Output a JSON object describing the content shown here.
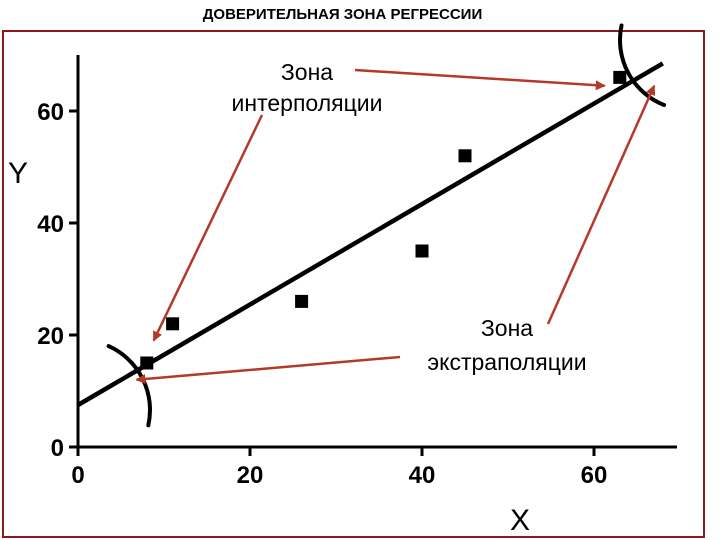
{
  "chart_data": {
    "type": "scatter",
    "title": "ДОВЕРИТЕЛЬНАЯ ЗОНА РЕГРЕССИИ",
    "xlabel": "X",
    "ylabel": "Y",
    "xlim": [
      0,
      70
    ],
    "ylim": [
      0,
      70
    ],
    "x_ticks": [
      0,
      20,
      40,
      60
    ],
    "y_ticks": [
      0,
      20,
      40,
      60
    ],
    "grid": false,
    "points": [
      {
        "x": 8,
        "y": 15
      },
      {
        "x": 11,
        "y": 22
      },
      {
        "x": 26,
        "y": 26
      },
      {
        "x": 40,
        "y": 35
      },
      {
        "x": 45,
        "y": 52
      },
      {
        "x": 63,
        "y": 66
      }
    ],
    "regression_line": {
      "x": [
        0,
        68
      ],
      "y": [
        7.5,
        68.5
      ]
    },
    "annotations": [
      {
        "lines": [
          "Зона",
          "интерполяции"
        ]
      },
      {
        "lines": [
          "Зона",
          "экстраполяции"
        ]
      }
    ],
    "colors": {
      "arrow": "#b33a2a",
      "frame": "#8b1a1a",
      "ink": "#000000"
    }
  }
}
